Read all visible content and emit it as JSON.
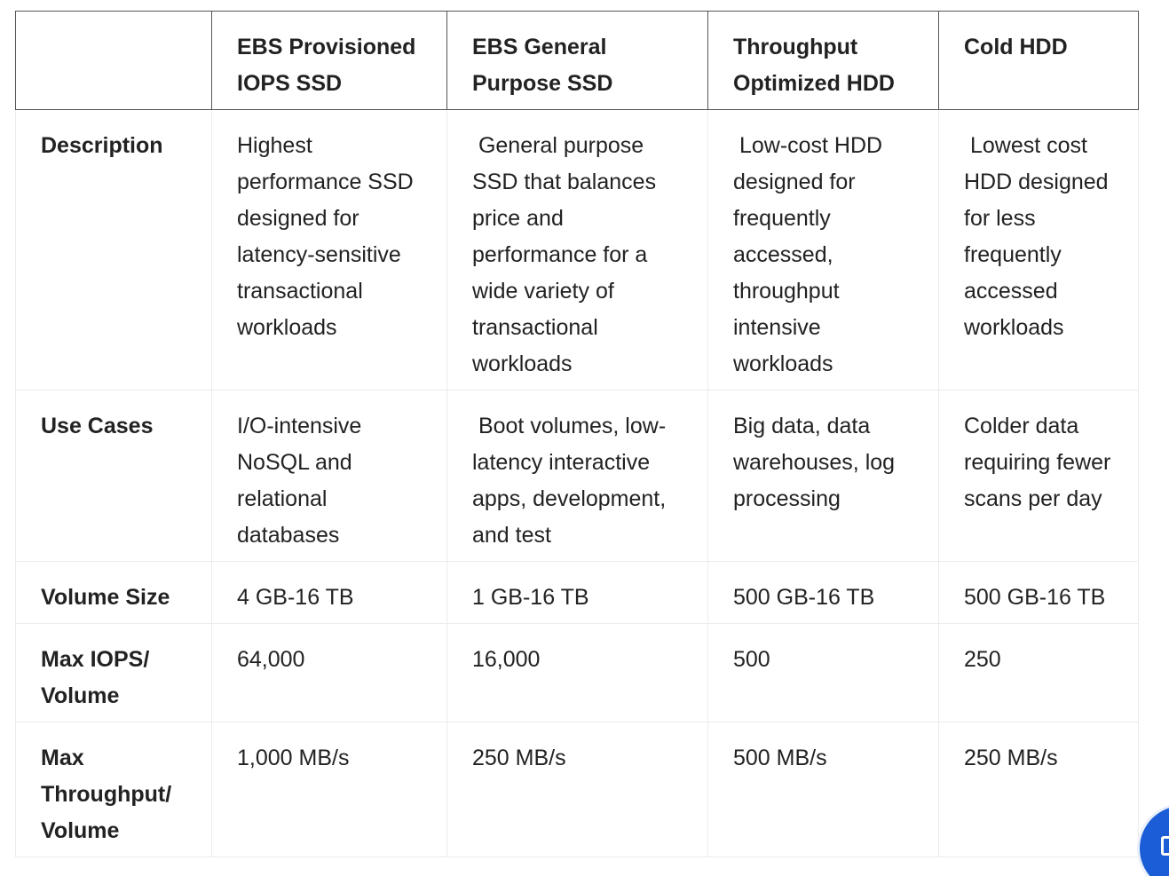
{
  "table": {
    "headers": [
      "",
      "EBS Provisioned IOPS SSD",
      "EBS General Purpose SSD",
      "Throughput Optimized HDD",
      "Cold HDD"
    ],
    "rows": [
      {
        "label": "Description",
        "cells": [
          "Highest performance SSD designed for latency-sensitive transactional workloads",
          " General purpose SSD that balances price and performance for a wide variety of transactional workloads",
          " Low-cost HDD designed for frequently accessed, throughput intensive workloads",
          " Lowest cost HDD designed for less frequently accessed workloads"
        ]
      },
      {
        "label": "Use Cases",
        "cells": [
          "I/O-intensive NoSQL and relational databases",
          " Boot volumes, low-latency interactive apps, development, and test",
          "Big data, data warehouses, log processing",
          "Colder data requiring fewer scans per day"
        ]
      },
      {
        "label": "Volume Size",
        "cells": [
          "4 GB-16 TB",
          "1 GB-16 TB",
          "500 GB-16 TB",
          "500 GB-16 TB"
        ]
      },
      {
        "label": "Max IOPS/ Volume",
        "cells": [
          "64,000",
          "16,000",
          "500",
          "250"
        ]
      },
      {
        "label": "Max Throughput/ Volume",
        "cells": [
          "1,000 MB/s",
          "250 MB/s",
          "500 MB/s",
          "250 MB/s"
        ]
      }
    ]
  },
  "chat_widget": {
    "icon": "chat-icon",
    "color": "#1a5dd6"
  }
}
